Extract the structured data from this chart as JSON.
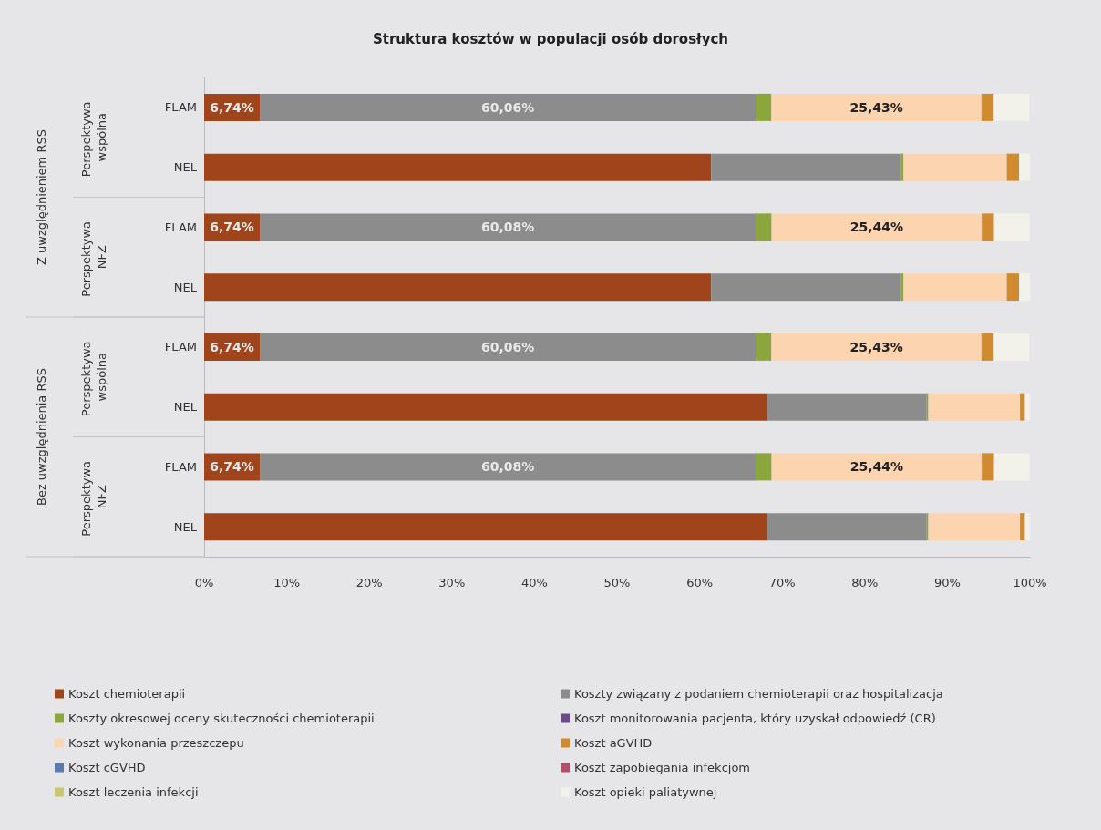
{
  "chart_data": {
    "type": "bar",
    "orientation": "horizontal",
    "stacked": true,
    "title": "Struktura kosztów w populacji osób dorosłych",
    "categories": [
      "FLAM",
      "NEL",
      "FLAM",
      "NEL",
      "FLAM",
      "NEL",
      "FLAM",
      "NEL"
    ],
    "annotations": [
      "Perspektywa wspólna",
      "Perspektywa NFZ",
      "Perspektywa wspólna",
      "Perspektywa NFZ",
      "Z uwzględnieniem RSS",
      "Bez uwzględnienia RSS"
    ],
    "xlim": [
      0,
      100
    ],
    "xticks": [
      {
        "value": 0,
        "label": "0%"
      },
      {
        "value": 10,
        "label": "10%"
      },
      {
        "value": 20,
        "label": "20%"
      },
      {
        "value": 30,
        "label": "30%"
      },
      {
        "value": 40,
        "label": "40%"
      },
      {
        "value": 50,
        "label": "50%"
      },
      {
        "value": 60,
        "label": "60%"
      },
      {
        "value": 70,
        "label": "70%"
      },
      {
        "value": 80,
        "label": "80%"
      },
      {
        "value": 90,
        "label": "90%"
      },
      {
        "value": 100,
        "label": "100%"
      }
    ],
    "legend": "bottom",
    "series": [
      {
        "name": "Koszt chemioterapii",
        "color": "#a0441c",
        "values": [
          6.74,
          61.4,
          6.74,
          61.4,
          6.74,
          68.2,
          6.74,
          68.2
        ],
        "value_labels": [
          "6,74%",
          null,
          "6,74%",
          null,
          "6,74%",
          null,
          "6,74%",
          null
        ]
      },
      {
        "name": "Koszty związany z podaniem chemioterapii oraz hospitalizacja",
        "color": "#8c8c8c",
        "values": [
          60.06,
          23.0,
          60.08,
          23.0,
          60.06,
          19.3,
          60.08,
          19.3
        ],
        "value_labels": [
          "60,06%",
          null,
          "60,08%",
          null,
          "60,06%",
          null,
          "60,08%",
          null
        ]
      },
      {
        "name": "Koszty okresowej oceny skuteczności chemioterapii",
        "color": "#8aa63c",
        "values": [
          1.9,
          0.3,
          1.9,
          0.3,
          1.9,
          0.2,
          1.9,
          0.2
        ]
      },
      {
        "name": "Koszt monitorowania pacjenta, który uzyskał odpowiedź (CR)",
        "color": "#6a4a8a",
        "values": [
          0,
          0,
          0,
          0,
          0,
          0,
          0,
          0
        ]
      },
      {
        "name": "Koszt wykonania przeszczepu",
        "color": "#fcd5b0",
        "values": [
          25.43,
          12.5,
          25.44,
          12.5,
          25.43,
          11.1,
          25.44,
          11.1
        ],
        "value_labels": [
          "25,43%",
          null,
          "25,44%",
          null,
          "25,43%",
          null,
          "25,44%",
          null
        ]
      },
      {
        "name": "Koszt aGVHD",
        "color": "#d08a30",
        "values": [
          1.5,
          1.5,
          1.5,
          1.5,
          1.5,
          0.6,
          1.5,
          0.6
        ]
      },
      {
        "name": "Koszt cGVHD",
        "color": "#5a7ab0",
        "values": [
          0,
          0,
          0,
          0,
          0,
          0,
          0,
          0
        ]
      },
      {
        "name": "Koszt zapobiegania infekcjom",
        "color": "#b0506a",
        "values": [
          0,
          0,
          0,
          0,
          0,
          0,
          0,
          0
        ]
      },
      {
        "name": "Koszt leczenia infekcji",
        "color": "#c8c86a",
        "values": [
          0,
          0,
          0,
          0,
          0,
          0,
          0,
          0
        ]
      },
      {
        "name": "Koszt opieki paliatywnej",
        "color": "#f2f2ea",
        "values": [
          4.3,
          1.3,
          4.3,
          1.3,
          4.3,
          0.6,
          4.3,
          0.6
        ]
      }
    ]
  }
}
